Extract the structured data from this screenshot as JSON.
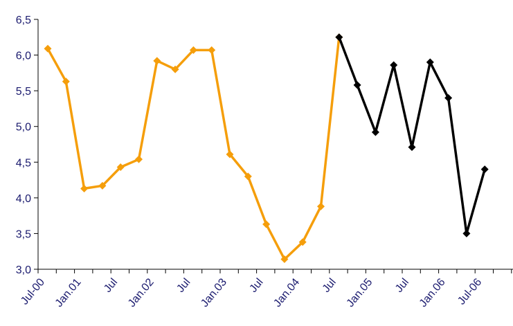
{
  "chart_data": {
    "type": "line",
    "title": "",
    "xlabel": "",
    "ylabel": "",
    "ylim": [
      3.0,
      6.5
    ],
    "y_ticks": [
      "3,0",
      "3,5",
      "4,0",
      "4,5",
      "5,0",
      "5,5",
      "6,0",
      "6,5"
    ],
    "y_tick_values": [
      3.0,
      3.5,
      4.0,
      4.5,
      5.0,
      5.5,
      6.0,
      6.5
    ],
    "x_tick_labels": [
      "Jul-00",
      "Jan.01",
      "Jul",
      "Jan.02",
      "Jul",
      "Jan.03",
      "Jul",
      "Jan.04",
      "Jul",
      "Jan.05",
      "Jul",
      "Jan.06",
      "Jul-06"
    ],
    "grid": false,
    "legend": "none",
    "series": [
      {
        "color": "#f59e0b",
        "marker": "diamond",
        "values": [
          6.09,
          5.63,
          4.13,
          4.17,
          4.43,
          4.54,
          5.92,
          5.8,
          6.07,
          6.07,
          4.61,
          4.3,
          3.63,
          3.14,
          3.38,
          3.88,
          6.25
        ]
      },
      {
        "color": "#000000",
        "marker": "diamond",
        "start_index": 16,
        "values": [
          6.25,
          5.58,
          4.92,
          5.86,
          4.71,
          5.9,
          5.4,
          3.5,
          4.4
        ]
      }
    ]
  }
}
